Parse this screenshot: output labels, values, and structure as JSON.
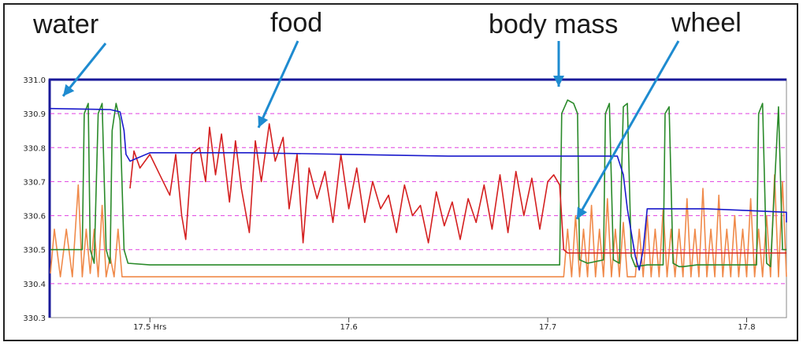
{
  "chart_data": {
    "type": "line",
    "ylim": [
      330.3,
      331.0
    ],
    "y_ticks": [
      "331.0",
      "330.9",
      "330.8",
      "330.7",
      "330.6",
      "330.5",
      "330.4",
      "330.3"
    ],
    "xlim": [
      17.45,
      17.82
    ],
    "x_ticks": [
      {
        "value": 17.5,
        "label": "17.5 Hrs"
      },
      {
        "value": 17.6,
        "label": "17.6"
      },
      {
        "value": 17.7,
        "label": "17.7"
      },
      {
        "value": 17.8,
        "label": "17.8"
      }
    ],
    "grid": "horizontal dashed magenta",
    "annotations": [
      "water",
      "food",
      "body mass",
      "wheel"
    ],
    "series": [
      {
        "color": "#1a1acc",
        "points": [
          [
            17.45,
            330.915
          ],
          [
            17.48,
            330.912
          ],
          [
            17.485,
            330.905
          ],
          [
            17.487,
            330.85
          ],
          [
            17.488,
            330.78
          ],
          [
            17.49,
            330.76
          ],
          [
            17.5,
            330.785
          ],
          [
            17.55,
            330.785
          ],
          [
            17.6,
            330.78
          ],
          [
            17.65,
            330.775
          ],
          [
            17.7,
            330.775
          ],
          [
            17.735,
            330.775
          ],
          [
            17.738,
            330.72
          ],
          [
            17.74,
            330.62
          ],
          [
            17.742,
            330.55
          ],
          [
            17.744,
            330.48
          ],
          [
            17.746,
            330.44
          ],
          [
            17.748,
            330.5
          ],
          [
            17.75,
            330.62
          ],
          [
            17.76,
            330.62
          ],
          [
            17.78,
            330.62
          ],
          [
            17.8,
            330.615
          ],
          [
            17.82,
            330.61
          ],
          [
            17.82,
            330.58
          ]
        ]
      },
      {
        "color": "#d42020",
        "points": [
          [
            17.49,
            330.68
          ],
          [
            17.492,
            330.79
          ],
          [
            17.495,
            330.74
          ],
          [
            17.5,
            330.78
          ],
          [
            17.505,
            330.72
          ],
          [
            17.51,
            330.66
          ],
          [
            17.513,
            330.78
          ],
          [
            17.516,
            330.6
          ],
          [
            17.518,
            330.53
          ],
          [
            17.521,
            330.78
          ],
          [
            17.525,
            330.8
          ],
          [
            17.528,
            330.7
          ],
          [
            17.53,
            330.86
          ],
          [
            17.533,
            330.72
          ],
          [
            17.536,
            330.84
          ],
          [
            17.54,
            330.64
          ],
          [
            17.543,
            330.82
          ],
          [
            17.546,
            330.68
          ],
          [
            17.55,
            330.55
          ],
          [
            17.553,
            330.82
          ],
          [
            17.556,
            330.7
          ],
          [
            17.56,
            330.87
          ],
          [
            17.563,
            330.76
          ],
          [
            17.567,
            330.83
          ],
          [
            17.57,
            330.62
          ],
          [
            17.574,
            330.78
          ],
          [
            17.577,
            330.52
          ],
          [
            17.58,
            330.74
          ],
          [
            17.584,
            330.65
          ],
          [
            17.588,
            330.73
          ],
          [
            17.592,
            330.58
          ],
          [
            17.596,
            330.78
          ],
          [
            17.6,
            330.62
          ],
          [
            17.604,
            330.74
          ],
          [
            17.608,
            330.58
          ],
          [
            17.612,
            330.7
          ],
          [
            17.616,
            330.62
          ],
          [
            17.62,
            330.66
          ],
          [
            17.624,
            330.55
          ],
          [
            17.628,
            330.69
          ],
          [
            17.632,
            330.6
          ],
          [
            17.636,
            330.63
          ],
          [
            17.64,
            330.52
          ],
          [
            17.644,
            330.67
          ],
          [
            17.648,
            330.57
          ],
          [
            17.652,
            330.64
          ],
          [
            17.656,
            330.53
          ],
          [
            17.66,
            330.65
          ],
          [
            17.664,
            330.58
          ],
          [
            17.668,
            330.69
          ],
          [
            17.672,
            330.56
          ],
          [
            17.676,
            330.72
          ],
          [
            17.68,
            330.55
          ],
          [
            17.684,
            330.73
          ],
          [
            17.688,
            330.6
          ],
          [
            17.692,
            330.71
          ],
          [
            17.696,
            330.56
          ],
          [
            17.7,
            330.7
          ],
          [
            17.703,
            330.72
          ],
          [
            17.706,
            330.69
          ],
          [
            17.708,
            330.5
          ],
          [
            17.71,
            330.49
          ],
          [
            17.72,
            330.49
          ],
          [
            17.74,
            330.49
          ],
          [
            17.76,
            330.49
          ],
          [
            17.78,
            330.49
          ],
          [
            17.8,
            330.49
          ],
          [
            17.82,
            330.49
          ]
        ]
      },
      {
        "color": "#2a8a2a",
        "points": [
          [
            17.45,
            330.5
          ],
          [
            17.466,
            330.5
          ],
          [
            17.467,
            330.9
          ],
          [
            17.469,
            330.93
          ],
          [
            17.47,
            330.5
          ],
          [
            17.472,
            330.46
          ],
          [
            17.474,
            330.9
          ],
          [
            17.476,
            330.93
          ],
          [
            17.478,
            330.5
          ],
          [
            17.48,
            330.46
          ],
          [
            17.481,
            330.85
          ],
          [
            17.483,
            330.93
          ],
          [
            17.485,
            330.88
          ],
          [
            17.487,
            330.5
          ],
          [
            17.489,
            330.46
          ],
          [
            17.5,
            330.455
          ],
          [
            17.6,
            330.455
          ],
          [
            17.7,
            330.455
          ],
          [
            17.706,
            330.455
          ],
          [
            17.707,
            330.9
          ],
          [
            17.71,
            330.94
          ],
          [
            17.713,
            330.93
          ],
          [
            17.715,
            330.9
          ],
          [
            17.716,
            330.47
          ],
          [
            17.72,
            330.46
          ],
          [
            17.728,
            330.47
          ],
          [
            17.729,
            330.9
          ],
          [
            17.731,
            330.93
          ],
          [
            17.733,
            330.47
          ],
          [
            17.736,
            330.46
          ],
          [
            17.738,
            330.92
          ],
          [
            17.74,
            330.93
          ],
          [
            17.742,
            330.48
          ],
          [
            17.744,
            330.45
          ],
          [
            17.75,
            330.455
          ],
          [
            17.758,
            330.455
          ],
          [
            17.759,
            330.9
          ],
          [
            17.761,
            330.92
          ],
          [
            17.763,
            330.46
          ],
          [
            17.766,
            330.45
          ],
          [
            17.768,
            330.45
          ],
          [
            17.775,
            330.455
          ],
          [
            17.78,
            330.455
          ],
          [
            17.79,
            330.455
          ],
          [
            17.8,
            330.455
          ],
          [
            17.805,
            330.455
          ],
          [
            17.806,
            330.9
          ],
          [
            17.808,
            330.93
          ],
          [
            17.81,
            330.46
          ],
          [
            17.812,
            330.45
          ],
          [
            17.816,
            330.92
          ],
          [
            17.818,
            330.5
          ],
          [
            17.82,
            330.5
          ]
        ]
      },
      {
        "color": "#f08a4a",
        "points": [
          [
            17.45,
            330.43
          ],
          [
            17.452,
            330.56
          ],
          [
            17.455,
            330.42
          ],
          [
            17.458,
            330.56
          ],
          [
            17.461,
            330.42
          ],
          [
            17.464,
            330.69
          ],
          [
            17.466,
            330.42
          ],
          [
            17.468,
            330.56
          ],
          [
            17.47,
            330.43
          ],
          [
            17.472,
            330.56
          ],
          [
            17.474,
            330.42
          ],
          [
            17.476,
            330.63
          ],
          [
            17.478,
            330.42
          ],
          [
            17.48,
            330.48
          ],
          [
            17.482,
            330.42
          ],
          [
            17.484,
            330.56
          ],
          [
            17.486,
            330.42
          ],
          [
            17.49,
            330.42
          ],
          [
            17.6,
            330.42
          ],
          [
            17.7,
            330.42
          ],
          [
            17.708,
            330.42
          ],
          [
            17.71,
            330.56
          ],
          [
            17.712,
            330.42
          ],
          [
            17.714,
            330.6
          ],
          [
            17.716,
            330.42
          ],
          [
            17.718,
            330.56
          ],
          [
            17.72,
            330.42
          ],
          [
            17.722,
            330.63
          ],
          [
            17.724,
            330.42
          ],
          [
            17.726,
            330.56
          ],
          [
            17.728,
            330.42
          ],
          [
            17.73,
            330.65
          ],
          [
            17.732,
            330.42
          ],
          [
            17.734,
            330.56
          ],
          [
            17.736,
            330.42
          ],
          [
            17.738,
            330.58
          ],
          [
            17.74,
            330.42
          ],
          [
            17.744,
            330.42
          ],
          [
            17.746,
            330.56
          ],
          [
            17.748,
            330.42
          ],
          [
            17.75,
            330.6
          ],
          [
            17.752,
            330.42
          ],
          [
            17.754,
            330.56
          ],
          [
            17.756,
            330.42
          ],
          [
            17.758,
            330.62
          ],
          [
            17.76,
            330.42
          ],
          [
            17.762,
            330.56
          ],
          [
            17.764,
            330.42
          ],
          [
            17.766,
            330.56
          ],
          [
            17.768,
            330.42
          ],
          [
            17.77,
            330.65
          ],
          [
            17.772,
            330.42
          ],
          [
            17.774,
            330.56
          ],
          [
            17.776,
            330.42
          ],
          [
            17.778,
            330.68
          ],
          [
            17.78,
            330.42
          ],
          [
            17.782,
            330.56
          ],
          [
            17.784,
            330.42
          ],
          [
            17.786,
            330.66
          ],
          [
            17.788,
            330.42
          ],
          [
            17.79,
            330.56
          ],
          [
            17.792,
            330.42
          ],
          [
            17.794,
            330.6
          ],
          [
            17.796,
            330.42
          ],
          [
            17.798,
            330.56
          ],
          [
            17.8,
            330.42
          ],
          [
            17.802,
            330.65
          ],
          [
            17.804,
            330.42
          ],
          [
            17.806,
            330.56
          ],
          [
            17.808,
            330.42
          ],
          [
            17.81,
            330.6
          ],
          [
            17.812,
            330.42
          ],
          [
            17.814,
            330.72
          ],
          [
            17.816,
            330.42
          ],
          [
            17.818,
            330.7
          ],
          [
            17.82,
            330.42
          ]
        ]
      }
    ]
  }
}
